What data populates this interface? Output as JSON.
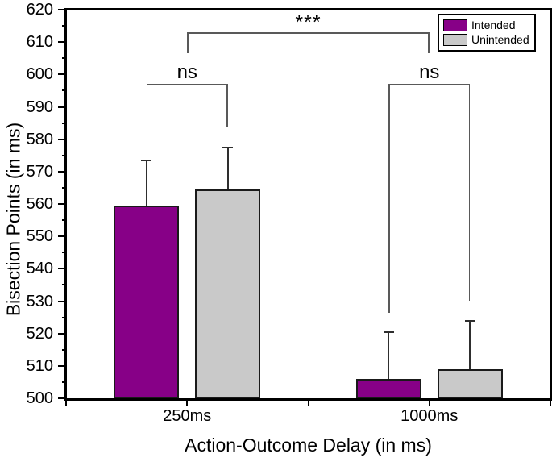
{
  "chart_data": {
    "type": "bar",
    "title": "",
    "xlabel": "Action-Outcome Delay (in ms)",
    "ylabel": "Bisection Points (in ms)",
    "ylim": [
      500,
      620
    ],
    "y_major_tick": 10,
    "y_minor_tick": 5,
    "y_tick_labels": [
      "500",
      "510",
      "520",
      "530",
      "540",
      "550",
      "560",
      "570",
      "580",
      "590",
      "600",
      "610",
      "620"
    ],
    "grid": "off",
    "categories": [
      "250ms",
      "1000ms"
    ],
    "series": [
      {
        "name": "Intended",
        "color": "#870087",
        "values": [
          559.5,
          506
        ],
        "error_plus": [
          14,
          14.5
        ]
      },
      {
        "name": "Unintended",
        "color": "#C9C9C9",
        "values": [
          564.5,
          509
        ],
        "error_plus": [
          13,
          15
        ]
      }
    ],
    "annotations": [
      {
        "label": "ns",
        "type": "within-group",
        "group_index": 0,
        "bar_top": 597,
        "arm_ends": [
          580,
          584
        ]
      },
      {
        "label": "ns",
        "type": "within-group",
        "group_index": 1,
        "bar_top": 597,
        "arm_ends": [
          526.5,
          530
        ]
      },
      {
        "label": "***",
        "type": "between-groups",
        "groups": [
          0,
          1
        ],
        "bar_top": 613,
        "arm_ends": [
          606.5,
          606.5
        ]
      }
    ],
    "legend": {
      "position": "top-right",
      "entries": [
        "Intended",
        "Unintended"
      ]
    }
  },
  "colors": {
    "axis": "#000000",
    "bar_border": "#1A1A1A",
    "error_bar": "#2E2E2E",
    "bracket": "#595959",
    "intended": "#870087",
    "unintended": "#C9C9C9",
    "background": "#FFFFFF"
  }
}
